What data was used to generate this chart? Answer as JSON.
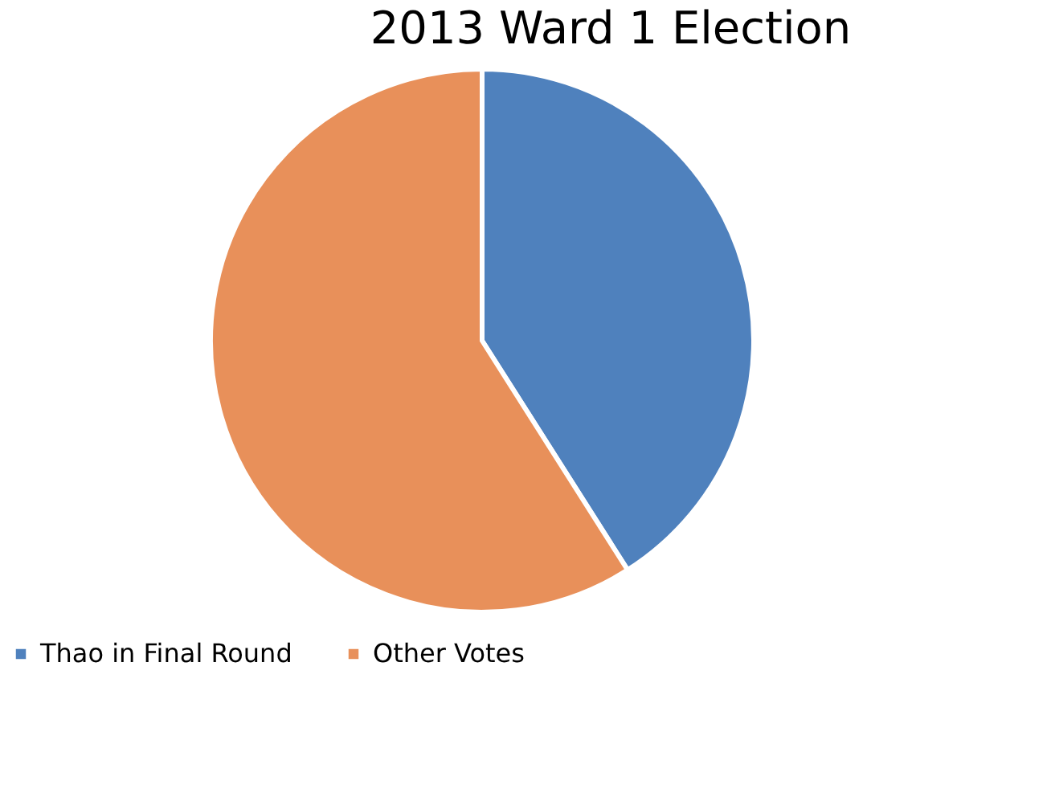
{
  "chart_data": {
    "type": "pie",
    "title": "2013 Ward 1 Election",
    "categories": [
      "Thao in Final Round",
      "Other Votes"
    ],
    "values": [
      41,
      59
    ],
    "colors": [
      "#4f81bd",
      "#e8905a"
    ],
    "legend": "bottom"
  }
}
